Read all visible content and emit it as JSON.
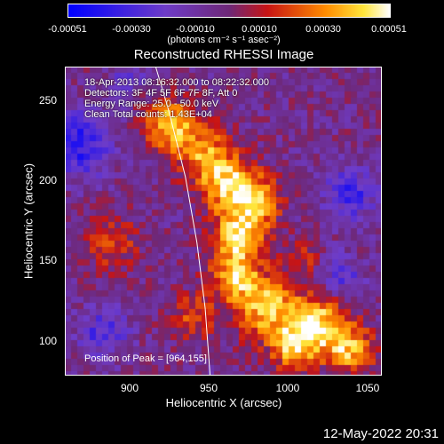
{
  "colorbar": {
    "tick_labels": [
      "-0.00051",
      "-0.00030",
      "-0.00010",
      "0.00010",
      "0.00030",
      "0.00051"
    ],
    "units": "(photons cm⁻² s⁻¹ asec⁻²)",
    "min": -0.00051,
    "max": 0.00051
  },
  "chart_data": {
    "type": "heatmap",
    "title": "Reconstructed RHESSI Image",
    "xlabel": "Heliocentric X (arcsec)",
    "ylabel": "Heliocentric Y (arcsec)",
    "xlim": [
      862,
      1054
    ],
    "ylim": [
      79,
      267
    ],
    "x_ticks": [
      900,
      950,
      1000,
      1050
    ],
    "y_ticks": [
      100,
      150,
      200,
      250
    ],
    "peak": [
      964,
      155
    ],
    "limb_curve": [
      [
        917,
        267
      ],
      [
        925,
        240
      ],
      [
        935,
        200
      ],
      [
        942,
        160
      ],
      [
        947,
        120
      ],
      [
        950,
        79
      ]
    ],
    "hot_regions": [
      {
        "x": 925,
        "y": 232,
        "r": 14,
        "v": 0.00045
      },
      {
        "x": 945,
        "y": 215,
        "r": 16,
        "v": 0.00035
      },
      {
        "x": 962,
        "y": 195,
        "r": 16,
        "v": 0.00048
      },
      {
        "x": 968,
        "y": 165,
        "r": 14,
        "v": 0.0005
      },
      {
        "x": 980,
        "y": 185,
        "r": 12,
        "v": 0.0004
      },
      {
        "x": 965,
        "y": 140,
        "r": 14,
        "v": 0.00042
      },
      {
        "x": 985,
        "y": 120,
        "r": 18,
        "v": 0.00045
      },
      {
        "x": 1015,
        "y": 110,
        "r": 16,
        "v": 0.00048
      },
      {
        "x": 1035,
        "y": 95,
        "r": 14,
        "v": 0.0004
      },
      {
        "x": 1000,
        "y": 95,
        "r": 12,
        "v": 0.00038
      },
      {
        "x": 940,
        "y": 115,
        "r": 14,
        "v": 0.00022
      },
      {
        "x": 890,
        "y": 160,
        "r": 16,
        "v": 0.00022
      },
      {
        "x": 1005,
        "y": 150,
        "r": 10,
        "v": 0.0002
      }
    ],
    "cold_regions": [
      {
        "x": 870,
        "y": 220,
        "r": 18,
        "v": -0.00035
      },
      {
        "x": 1035,
        "y": 190,
        "r": 14,
        "v": -0.0003
      },
      {
        "x": 885,
        "y": 105,
        "r": 14,
        "v": -0.00025
      },
      {
        "x": 1030,
        "y": 140,
        "r": 12,
        "v": -0.0002
      },
      {
        "x": 900,
        "y": 260,
        "r": 10,
        "v": -0.00015
      }
    ]
  },
  "info": {
    "line1": "18-Apr-2013 08:16:32.000 to 08:22:32.000",
    "line2": "Detectors: 3F 4F 5F 6F 7F 8F, Att 0",
    "line3": "Energy Range: 25.0 - 50.0 keV",
    "line4": "Clean     Total counts: 1.43E+04"
  },
  "peak_label": "Position of Peak = [964,155]",
  "timestamp": "12-May-2022 20:31"
}
